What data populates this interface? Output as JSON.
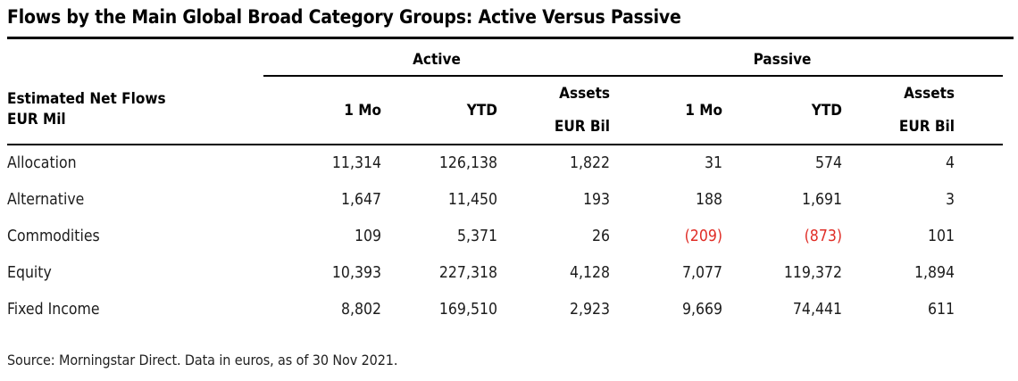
{
  "title": "Flows by the Main Global Broad Category Groups: Active Versus Passive",
  "header": {
    "row_header_line1": "Estimated Net Flows",
    "row_header_line2": "EUR Mil",
    "group_active": "Active",
    "group_passive": "Passive",
    "col_1mo": "1 Mo",
    "col_ytd": "YTD",
    "col_assets_line1": "Assets",
    "col_assets_line2": "EUR Bil"
  },
  "source": "Source: Morningstar Direct. Data in euros, as of 30 Nov 2021.",
  "colors": {
    "negative_red": "#e02d26",
    "text": "#1d1d1d",
    "rule": "#000000"
  },
  "chart_data": {
    "type": "table",
    "title": "Flows by the Main Global Broad Category Groups: Active Versus Passive",
    "units": {
      "flows": "EUR Mil",
      "assets": "EUR Bil"
    },
    "column_groups": [
      "Active",
      "Passive"
    ],
    "columns": [
      "Active 1 Mo",
      "Active YTD",
      "Active Assets EUR Bil",
      "Passive 1 Mo",
      "Passive YTD",
      "Passive Assets EUR Bil"
    ],
    "negative_format": "parentheses, red",
    "rows": [
      {
        "category": "Allocation",
        "values": [
          "11,314",
          "126,138",
          "1,822",
          "31",
          "574",
          "4"
        ]
      },
      {
        "category": "Alternative",
        "values": [
          "1,647",
          "11,450",
          "193",
          "188",
          "1,691",
          "3"
        ]
      },
      {
        "category": "Commodities",
        "values": [
          "109",
          "5,371",
          "26",
          "(209)",
          "(873)",
          "101"
        ]
      },
      {
        "category": "Equity",
        "values": [
          "10,393",
          "227,318",
          "4,128",
          "7,077",
          "119,372",
          "1,894"
        ]
      },
      {
        "category": "Fixed Income",
        "values": [
          "8,802",
          "169,510",
          "2,923",
          "9,669",
          "74,441",
          "611"
        ]
      }
    ],
    "source": "Source: Morningstar Direct. Data in euros, as of 30 Nov 2021."
  }
}
